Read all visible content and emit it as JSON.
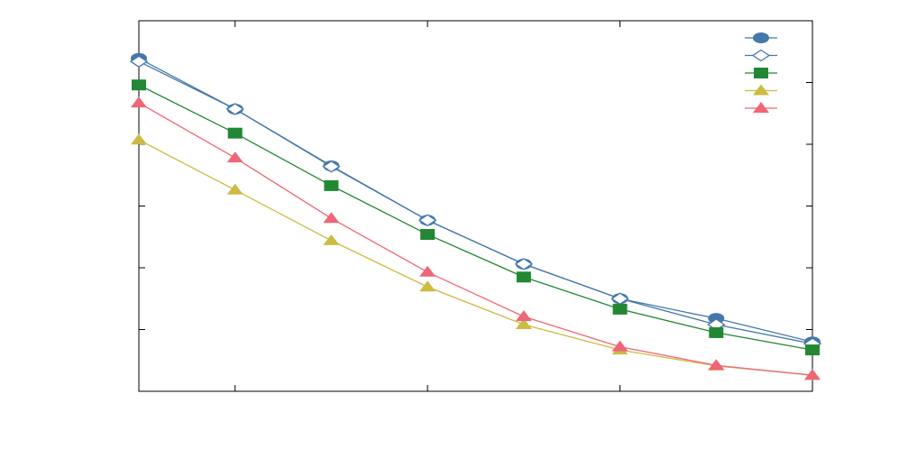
{
  "chart_data": {
    "type": "line",
    "x": [
      1,
      2,
      3,
      4,
      5,
      6,
      7,
      8
    ],
    "xlim": [
      1,
      8
    ],
    "xticks": [
      2,
      4,
      6
    ],
    "ylim": [
      0,
      6
    ],
    "yticks": [
      1,
      2,
      3,
      4,
      5
    ],
    "grid": false,
    "legend": "top-right",
    "series": [
      {
        "color": "#4477aa",
        "marker": "circle",
        "values": [
          5.39,
          4.57,
          3.65,
          2.77,
          2.06,
          1.5,
          1.18,
          0.8
        ]
      },
      {
        "color": "#4477aa",
        "marker": "diamond-open",
        "values": [
          5.34,
          4.57,
          3.64,
          2.77,
          2.06,
          1.5,
          1.08,
          0.77
        ]
      },
      {
        "color": "#228833",
        "marker": "square",
        "values": [
          4.96,
          4.18,
          3.33,
          2.54,
          1.85,
          1.33,
          0.95,
          0.67
        ]
      },
      {
        "color": "#ccbb44",
        "marker": "triangle",
        "values": [
          4.07,
          3.26,
          2.44,
          1.69,
          1.08,
          0.67,
          0.41,
          0.26
        ]
      },
      {
        "color": "#ee6677",
        "marker": "triangle",
        "values": [
          4.67,
          3.78,
          2.8,
          1.93,
          1.21,
          0.72,
          0.42,
          0.26
        ]
      }
    ]
  }
}
